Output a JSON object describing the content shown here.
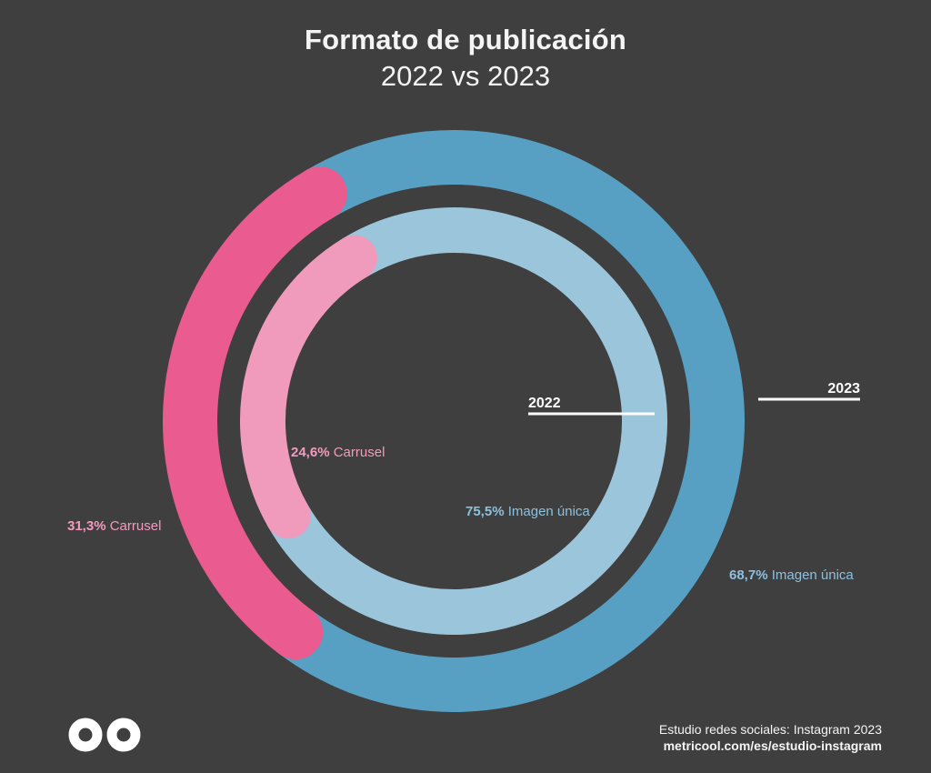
{
  "title": "Formato de publicación",
  "subtitle": "2022 vs 2023",
  "footer": {
    "line1": "Estudio redes sociales: Instagram 2023",
    "line2": "metricool.com/es/estudio-instagram"
  },
  "colors": {
    "background": "#3f3f3f",
    "outer_imagen": "#57a0c3",
    "outer_carrusel": "#ea5b8f",
    "inner_imagen": "#9bc5da",
    "inner_carrusel": "#f19bbc",
    "label_imagen": "#8cc0de",
    "label_carrusel": "#f49bbd",
    "ring_label": "#ffffff"
  },
  "chart_data": {
    "type": "donut",
    "rings": [
      {
        "name": "2023",
        "slices": [
          {
            "label": "Imagen única",
            "value": 68.7,
            "value_text": "68,7%"
          },
          {
            "label": "Carrusel",
            "value": 31.3,
            "value_text": "31,3%"
          }
        ]
      },
      {
        "name": "2022",
        "slices": [
          {
            "label": "Imagen única",
            "value": 75.5,
            "value_text": "75,5%"
          },
          {
            "label": "Carrusel",
            "value": 24.6,
            "value_text": "24,6%"
          }
        ]
      }
    ]
  }
}
